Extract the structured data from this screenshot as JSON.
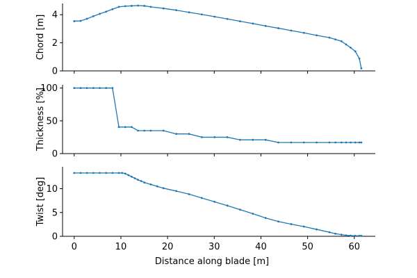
{
  "chart_data": [
    {
      "type": "line",
      "ylabel": "Chord [m]",
      "xlabel": "",
      "xlim": [
        -2.5,
        64.5
      ],
      "ylim": [
        0,
        4.8
      ],
      "xticks": [
        0,
        10,
        20,
        30,
        40,
        50,
        60
      ],
      "yticks": [
        0,
        2,
        4
      ],
      "show_xticklabels": false,
      "color": "#1f77b4",
      "x": [
        0,
        1.37,
        2.73,
        4.1,
        5.47,
        6.83,
        8.2,
        9.57,
        10.93,
        12.3,
        13.67,
        15.03,
        16.4,
        19.13,
        21.87,
        24.6,
        27.33,
        30.07,
        32.8,
        35.53,
        38.27,
        41,
        43.73,
        46.47,
        49.2,
        51.93,
        54.67,
        55.96,
        57.25,
        58.24,
        59.23,
        60.21,
        61.08,
        61.5
      ],
      "values": [
        3.54,
        3.56,
        3.71,
        3.89,
        4.06,
        4.22,
        4.39,
        4.56,
        4.61,
        4.63,
        4.65,
        4.63,
        4.56,
        4.45,
        4.32,
        4.17,
        4.02,
        3.86,
        3.7,
        3.53,
        3.37,
        3.2,
        3.04,
        2.87,
        2.71,
        2.53,
        2.37,
        2.24,
        2.11,
        1.88,
        1.65,
        1.39,
        0.88,
        0.18
      ]
    },
    {
      "type": "line",
      "ylabel": "Thickness [%]",
      "xlabel": "",
      "xlim": [
        -2.5,
        64.5
      ],
      "ylim": [
        0,
        105
      ],
      "xticks": [
        0,
        10,
        20,
        30,
        40,
        50,
        60
      ],
      "yticks": [
        0,
        50,
        100
      ],
      "show_xticklabels": false,
      "color": "#1f77b4",
      "x": [
        0,
        1.37,
        2.73,
        4.1,
        5.47,
        6.83,
        8.2,
        9.57,
        10.93,
        12.3,
        13.67,
        15.03,
        16.4,
        19.13,
        21.87,
        24.6,
        27.33,
        30.07,
        32.8,
        35.53,
        38.27,
        41,
        43.73,
        46.47,
        49.2,
        51.93,
        54.67,
        55.96,
        57.25,
        58.24,
        59.23,
        60.21,
        61.08,
        61.5
      ],
      "values": [
        100,
        100,
        100,
        100,
        100,
        100,
        100,
        40.5,
        40.5,
        40.5,
        35,
        35,
        35,
        35,
        30,
        30,
        25,
        25,
        25,
        21,
        21,
        21,
        17,
        17,
        17,
        17,
        17,
        17,
        17,
        17,
        17,
        17,
        17,
        17
      ]
    },
    {
      "type": "line",
      "ylabel": "Twist [deg]",
      "xlabel": "Distance along blade [m]",
      "xlim": [
        -2.5,
        64.5
      ],
      "ylim": [
        0,
        14.6
      ],
      "xticks": [
        0,
        10,
        20,
        30,
        40,
        50,
        60
      ],
      "yticks": [
        0,
        5,
        10
      ],
      "show_xticklabels": true,
      "color": "#1f77b4",
      "x": [
        0,
        1.37,
        2.73,
        4.1,
        5.47,
        6.83,
        8.2,
        9.57,
        10.25,
        10.93,
        11.62,
        12.3,
        12.98,
        13.67,
        14.35,
        15.03,
        16.4,
        17.77,
        19.13,
        21.87,
        24.6,
        27.33,
        30.07,
        32.8,
        35.53,
        38.27,
        41,
        43.73,
        46.47,
        49.2,
        51.93,
        54.67,
        55.96,
        57.25,
        58.24,
        59.23,
        60.21,
        61.08,
        61.5
      ],
      "values": [
        13.31,
        13.31,
        13.31,
        13.31,
        13.31,
        13.31,
        13.31,
        13.31,
        13.31,
        13.18,
        12.85,
        12.52,
        12.19,
        11.86,
        11.6,
        11.3,
        10.9,
        10.5,
        10.1,
        9.5,
        8.85,
        8.05,
        7.25,
        6.45,
        5.6,
        4.75,
        3.85,
        3.1,
        2.55,
        2.05,
        1.45,
        0.85,
        0.55,
        0.35,
        0.2,
        0.14,
        0.1,
        0.1,
        0.1
      ]
    }
  ]
}
